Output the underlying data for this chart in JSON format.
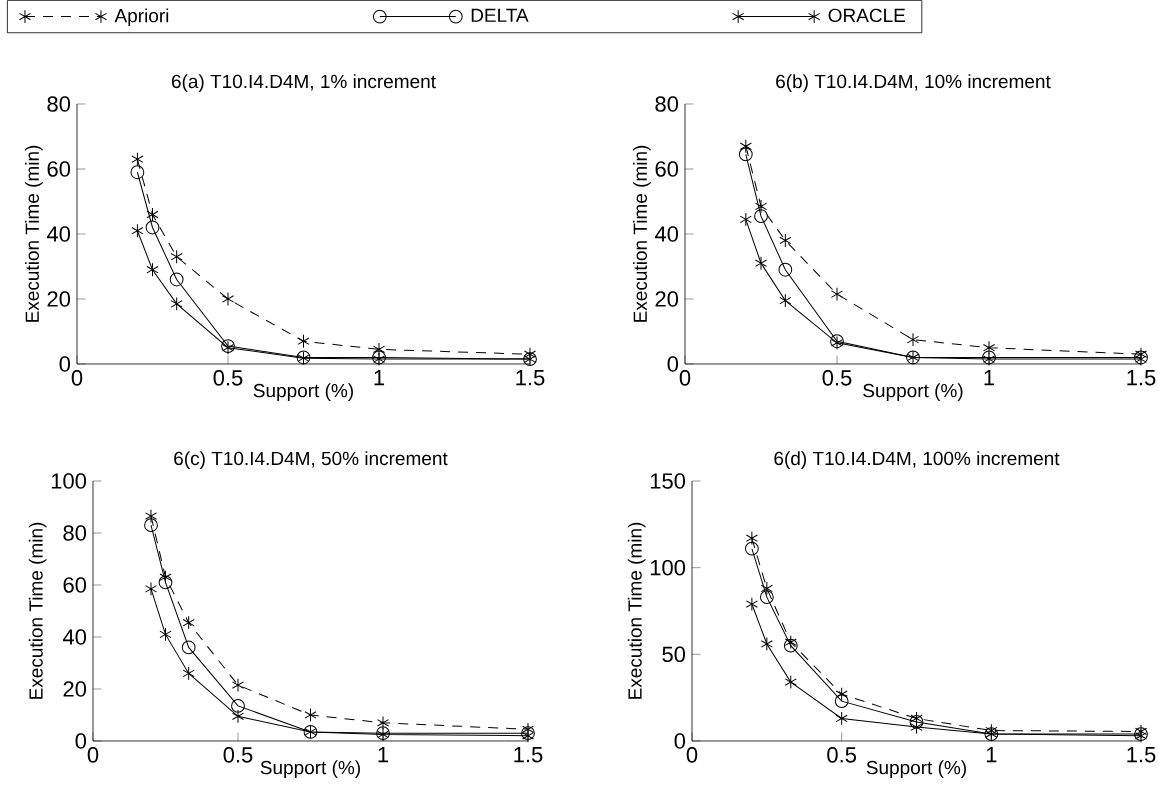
{
  "chart_data": [
    {
      "type": "line",
      "title": "6(a) T10.I4.D4M, 1% increment",
      "xlabel": "Support (%)",
      "ylabel": "Execution Time (min)",
      "legend": "top",
      "x": [
        0.2,
        0.25,
        0.33,
        0.5,
        0.75,
        1,
        1.5
      ],
      "xlim": [
        0,
        1.5
      ],
      "xticks": [
        0,
        0.5,
        1,
        1.5
      ],
      "ylim": [
        0,
        80
      ],
      "yticks": [
        0,
        20,
        40,
        60,
        80
      ],
      "series": [
        {
          "name": "Apriori",
          "color": "#000000",
          "marker": "cross",
          "line_style": "dashed",
          "values": [
            63,
            46,
            33,
            20,
            7,
            4.5,
            3
          ]
        },
        {
          "name": "DELTA",
          "color": "#000000",
          "marker": "circle",
          "line_style": "solid",
          "values": [
            59,
            42,
            26,
            5.5,
            2,
            2,
            1.5
          ]
        },
        {
          "name": "ORACLE",
          "color": "#000000",
          "marker": "cross",
          "line_style": "solid",
          "values": [
            41,
            29,
            18.5,
            5,
            1.8,
            1.5,
            1.5
          ]
        }
      ]
    },
    {
      "type": "line",
      "title": "6(b) T10.I4.D4M, 10% increment",
      "xlabel": "Support (%)",
      "ylabel": "Execution Time (min)",
      "x": [
        0.2,
        0.25,
        0.33,
        0.5,
        0.75,
        1,
        1.5
      ],
      "xlim": [
        0,
        1.5
      ],
      "xticks": [
        0,
        0.5,
        1,
        1.5
      ],
      "ylim": [
        0,
        80
      ],
      "yticks": [
        0,
        20,
        40,
        60,
        80
      ],
      "series": [
        {
          "color": "#000000",
          "marker": "cross",
          "line_style": "dashed",
          "values": [
            67,
            48.5,
            38,
            21.5,
            7.5,
            5,
            3
          ]
        },
        {
          "color": "#000000",
          "marker": "circle",
          "line_style": "solid",
          "values": [
            64.5,
            45.5,
            29,
            7,
            2,
            2,
            2
          ]
        },
        {
          "color": "#000000",
          "marker": "cross",
          "line_style": "solid",
          "values": [
            44.5,
            31,
            19.5,
            6.5,
            2,
            1.5,
            1.5
          ]
        }
      ]
    },
    {
      "type": "line",
      "title": "6(c) T10.I4.D4M, 50% increment",
      "xlabel": "Support (%)",
      "ylabel": "Execution Time (min)",
      "x": [
        0.2,
        0.25,
        0.33,
        0.5,
        0.75,
        1,
        1.5
      ],
      "xlim": [
        0,
        1.5
      ],
      "xticks": [
        0,
        0.5,
        1,
        1.5
      ],
      "ylim": [
        0,
        100
      ],
      "yticks": [
        0,
        20,
        40,
        60,
        80,
        100
      ],
      "series": [
        {
          "color": "#000000",
          "marker": "cross",
          "line_style": "dashed",
          "values": [
            86.5,
            63,
            45.5,
            21.5,
            10,
            7,
            4.5
          ]
        },
        {
          "color": "#000000",
          "marker": "circle",
          "line_style": "solid",
          "values": [
            83,
            61,
            36,
            13.5,
            3.5,
            3,
            3
          ]
        },
        {
          "color": "#000000",
          "marker": "cross",
          "line_style": "solid",
          "values": [
            58.5,
            41,
            26,
            9.5,
            3.5,
            2.5,
            2
          ]
        }
      ]
    },
    {
      "type": "line",
      "title": "6(d) T10.I4.D4M, 100% increment",
      "xlabel": "Support (%)",
      "ylabel": "Execution Time (min)",
      "x": [
        0.2,
        0.25,
        0.33,
        0.5,
        0.75,
        1,
        1.5
      ],
      "xlim": [
        0,
        1.5
      ],
      "xticks": [
        0,
        0.5,
        1,
        1.5
      ],
      "ylim": [
        0,
        150
      ],
      "yticks": [
        0,
        50,
        100,
        150
      ],
      "series": [
        {
          "color": "#000000",
          "marker": "cross",
          "line_style": "dashed",
          "values": [
            117,
            88,
            57,
            27,
            13,
            6,
            5.5
          ]
        },
        {
          "color": "#000000",
          "marker": "circle",
          "line_style": "solid",
          "values": [
            111,
            83,
            55,
            23,
            11,
            4,
            4
          ]
        },
        {
          "color": "#000000",
          "marker": "cross",
          "line_style": "solid",
          "values": [
            79,
            56,
            34,
            13,
            8,
            4,
            3
          ]
        }
      ]
    }
  ]
}
